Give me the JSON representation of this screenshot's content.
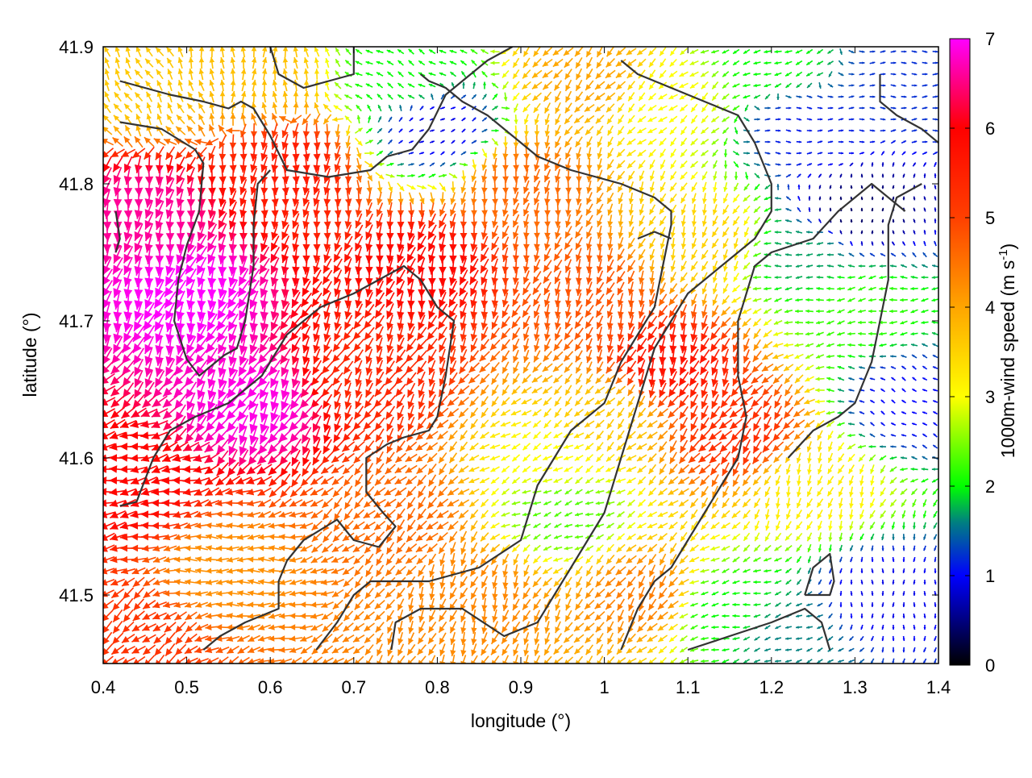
{
  "chart_data": {
    "type": "vector-field",
    "xlabel": "longitude (°)",
    "ylabel": "latitude (°)",
    "xlim": [
      0.4,
      1.4
    ],
    "ylim": [
      41.45,
      41.9
    ],
    "xticks": [
      0.4,
      0.5,
      0.6,
      0.7,
      0.8,
      0.9,
      1.0,
      1.1,
      1.2,
      1.3,
      1.4
    ],
    "xtick_labels": [
      "0.4",
      "0.5",
      "0.6",
      "0.7",
      "0.8",
      "0.9",
      "1",
      "1.1",
      "1.2",
      "1.3",
      "1.4"
    ],
    "yticks": [
      41.5,
      41.6,
      41.7,
      41.8,
      41.9
    ],
    "ytick_labels": [
      "41.5",
      "41.6",
      "41.7",
      "41.8",
      "41.9"
    ],
    "colorbar": {
      "label_prefix": "1000m-wind speed (m s",
      "label_exponent": "-1",
      "label_suffix": ")",
      "range": [
        0,
        7
      ],
      "ticks": [
        0,
        1,
        2,
        3,
        4,
        5,
        6,
        7
      ],
      "tick_labels": [
        "0",
        "1",
        "2",
        "3",
        "4",
        "5",
        "6",
        "7"
      ],
      "colormap": [
        {
          "v": 0,
          "color": "#000000"
        },
        {
          "v": 1,
          "color": "#0000ff"
        },
        {
          "v": 1.6,
          "color": "#008080"
        },
        {
          "v": 2,
          "color": "#00ff00"
        },
        {
          "v": 3,
          "color": "#ffff00"
        },
        {
          "v": 4,
          "color": "#ffa500"
        },
        {
          "v": 5,
          "color": "#ff4000"
        },
        {
          "v": 6,
          "color": "#ff0000"
        },
        {
          "v": 7,
          "color": "#ff00ff"
        }
      ]
    },
    "wind_regions": [
      {
        "lon": 0.5,
        "lat": 41.72,
        "speed": 7.0,
        "dir_deg": 200
      },
      {
        "lon": 0.58,
        "lat": 41.64,
        "speed": 6.9,
        "dir_deg": 210
      },
      {
        "lon": 0.45,
        "lat": 41.78,
        "speed": 6.6,
        "dir_deg": 190
      },
      {
        "lon": 0.43,
        "lat": 41.58,
        "speed": 5.9,
        "dir_deg": 260
      },
      {
        "lon": 0.62,
        "lat": 41.81,
        "speed": 5.6,
        "dir_deg": 185
      },
      {
        "lon": 0.78,
        "lat": 41.74,
        "speed": 5.9,
        "dir_deg": 195
      },
      {
        "lon": 0.72,
        "lat": 41.66,
        "speed": 5.4,
        "dir_deg": 210
      },
      {
        "lon": 0.9,
        "lat": 41.8,
        "speed": 4.6,
        "dir_deg": 190
      },
      {
        "lon": 0.98,
        "lat": 41.72,
        "speed": 4.8,
        "dir_deg": 200
      },
      {
        "lon": 0.55,
        "lat": 41.52,
        "speed": 4.2,
        "dir_deg": 270
      },
      {
        "lon": 0.75,
        "lat": 41.56,
        "speed": 4.6,
        "dir_deg": 225
      },
      {
        "lon": 0.85,
        "lat": 41.5,
        "speed": 4.3,
        "dir_deg": 200
      },
      {
        "lon": 0.94,
        "lat": 41.6,
        "speed": 3.0,
        "dir_deg": 240
      },
      {
        "lon": 0.95,
        "lat": 41.56,
        "speed": 2.3,
        "dir_deg": 250
      },
      {
        "lon": 1.0,
        "lat": 41.63,
        "speed": 3.6,
        "dir_deg": 225
      },
      {
        "lon": 1.08,
        "lat": 41.67,
        "speed": 5.7,
        "dir_deg": 200
      },
      {
        "lon": 1.16,
        "lat": 41.62,
        "speed": 5.3,
        "dir_deg": 220
      },
      {
        "lon": 1.05,
        "lat": 41.5,
        "speed": 4.4,
        "dir_deg": 215
      },
      {
        "lon": 1.14,
        "lat": 41.49,
        "speed": 2.0,
        "dir_deg": 260
      },
      {
        "lon": 1.22,
        "lat": 41.47,
        "speed": 1.6,
        "dir_deg": 250
      },
      {
        "lon": 1.33,
        "lat": 41.5,
        "speed": 0.9,
        "dir_deg": 180
      },
      {
        "lon": 1.25,
        "lat": 41.58,
        "speed": 3.2,
        "dir_deg": 200
      },
      {
        "lon": 1.36,
        "lat": 41.64,
        "speed": 1.0,
        "dir_deg": 300
      },
      {
        "lon": 1.3,
        "lat": 41.71,
        "speed": 2.2,
        "dir_deg": 260
      },
      {
        "lon": 1.24,
        "lat": 41.75,
        "speed": 1.7,
        "dir_deg": 270
      },
      {
        "lon": 1.3,
        "lat": 41.78,
        "speed": 0.4,
        "dir_deg": 0
      },
      {
        "lon": 1.24,
        "lat": 41.84,
        "speed": 1.1,
        "dir_deg": 90
      },
      {
        "lon": 1.2,
        "lat": 41.89,
        "speed": 2.0,
        "dir_deg": 250
      },
      {
        "lon": 1.36,
        "lat": 41.88,
        "speed": 1.2,
        "dir_deg": 90
      },
      {
        "lon": 1.08,
        "lat": 41.86,
        "speed": 3.0,
        "dir_deg": 230
      },
      {
        "lon": 0.98,
        "lat": 41.88,
        "speed": 4.0,
        "dir_deg": 220
      },
      {
        "lon": 0.76,
        "lat": 41.88,
        "speed": 2.0,
        "dir_deg": 300
      },
      {
        "lon": 0.8,
        "lat": 41.84,
        "speed": 0.9,
        "dir_deg": 60
      },
      {
        "lon": 0.58,
        "lat": 41.88,
        "speed": 3.7,
        "dir_deg": 0
      },
      {
        "lon": 0.45,
        "lat": 41.87,
        "speed": 3.6,
        "dir_deg": 330
      },
      {
        "lon": 1.12,
        "lat": 41.76,
        "speed": 3.5,
        "dir_deg": 200
      },
      {
        "lon": 0.42,
        "lat": 41.47,
        "speed": 5.2,
        "dir_deg": 230
      }
    ],
    "contours": [
      [
        [
          0.42,
          41.875
        ],
        [
          0.48,
          41.865
        ],
        [
          0.52,
          41.86
        ],
        [
          0.55,
          41.855
        ],
        [
          0.565,
          41.86
        ],
        [
          0.58,
          41.855
        ],
        [
          0.6,
          41.835
        ],
        [
          0.62,
          41.81
        ],
        [
          0.67,
          41.805
        ],
        [
          0.72,
          41.81
        ],
        [
          0.74,
          41.82
        ],
        [
          0.77,
          41.825
        ],
        [
          0.79,
          41.84
        ],
        [
          0.81,
          41.865
        ],
        [
          0.83,
          41.875
        ],
        [
          0.86,
          41.89
        ],
        [
          0.89,
          41.9
        ]
      ],
      [
        [
          0.42,
          41.845
        ],
        [
          0.47,
          41.84
        ],
        [
          0.51,
          41.825
        ],
        [
          0.52,
          41.815
        ],
        [
          0.515,
          41.78
        ],
        [
          0.5,
          41.755
        ],
        [
          0.49,
          41.73
        ],
        [
          0.485,
          41.7
        ],
        [
          0.5,
          41.672
        ],
        [
          0.515,
          41.66
        ],
        [
          0.545,
          41.675
        ],
        [
          0.56,
          41.68
        ],
        [
          0.57,
          41.7
        ],
        [
          0.58,
          41.74
        ],
        [
          0.58,
          41.77
        ],
        [
          0.585,
          41.8
        ],
        [
          0.6,
          41.81
        ]
      ],
      [
        [
          0.415,
          41.78
        ],
        [
          0.42,
          41.76
        ],
        [
          0.415,
          41.75
        ]
      ],
      [
        [
          0.42,
          41.565
        ],
        [
          0.44,
          41.568
        ],
        [
          0.46,
          41.6
        ],
        [
          0.48,
          41.62
        ],
        [
          0.51,
          41.63
        ],
        [
          0.55,
          41.64
        ],
        [
          0.59,
          41.66
        ],
        [
          0.62,
          41.69
        ],
        [
          0.66,
          41.71
        ],
        [
          0.7,
          41.72
        ],
        [
          0.73,
          41.73
        ],
        [
          0.76,
          41.74
        ],
        [
          0.78,
          41.73
        ],
        [
          0.8,
          41.71
        ],
        [
          0.82,
          41.7
        ],
        [
          0.81,
          41.66
        ],
        [
          0.8,
          41.63
        ],
        [
          0.79,
          41.62
        ],
        [
          0.76,
          41.615
        ],
        [
          0.74,
          41.61
        ],
        [
          0.715,
          41.6
        ],
        [
          0.715,
          41.575
        ],
        [
          0.735,
          41.56
        ],
        [
          0.75,
          41.55
        ],
        [
          0.73,
          41.535
        ],
        [
          0.7,
          41.54
        ],
        [
          0.68,
          41.555
        ],
        [
          0.64,
          41.54
        ],
        [
          0.62,
          41.525
        ],
        [
          0.61,
          41.51
        ],
        [
          0.61,
          41.49
        ],
        [
          0.57,
          41.48
        ],
        [
          0.54,
          41.47
        ],
        [
          0.52,
          41.46
        ]
      ],
      [
        [
          0.6,
          41.9
        ],
        [
          0.61,
          41.88
        ],
        [
          0.625,
          41.875
        ],
        [
          0.64,
          41.87
        ],
        [
          0.67,
          41.875
        ],
        [
          0.7,
          41.88
        ],
        [
          0.7,
          41.9
        ]
      ],
      [
        [
          0.655,
          41.46
        ],
        [
          0.68,
          41.48
        ],
        [
          0.7,
          41.5
        ],
        [
          0.72,
          41.51
        ],
        [
          0.79,
          41.51
        ],
        [
          0.85,
          41.52
        ],
        [
          0.9,
          41.54
        ],
        [
          0.92,
          41.58
        ],
        [
          0.96,
          41.62
        ],
        [
          1.0,
          41.64
        ],
        [
          1.02,
          41.67
        ],
        [
          1.04,
          41.69
        ],
        [
          1.06,
          41.71
        ],
        [
          1.07,
          41.74
        ],
        [
          1.08,
          41.77
        ],
        [
          1.08,
          41.78
        ],
        [
          1.06,
          41.79
        ],
        [
          1.02,
          41.8
        ],
        [
          0.96,
          41.81
        ],
        [
          0.92,
          41.82
        ],
        [
          0.9,
          41.83
        ],
        [
          0.88,
          41.84
        ],
        [
          0.86,
          41.85
        ],
        [
          0.83,
          41.86
        ],
        [
          0.81,
          41.87
        ],
        [
          0.79,
          41.875
        ],
        [
          0.78,
          41.88
        ]
      ],
      [
        [
          0.745,
          41.46
        ],
        [
          0.75,
          41.48
        ],
        [
          0.78,
          41.49
        ],
        [
          0.83,
          41.49
        ],
        [
          0.88,
          41.47
        ],
        [
          0.92,
          41.48
        ],
        [
          0.96,
          41.52
        ],
        [
          1.0,
          41.56
        ],
        [
          1.02,
          41.6
        ],
        [
          1.04,
          41.64
        ],
        [
          1.06,
          41.68
        ],
        [
          1.08,
          41.7
        ],
        [
          1.1,
          41.72
        ],
        [
          1.14,
          41.74
        ],
        [
          1.18,
          41.76
        ],
        [
          1.2,
          41.78
        ],
        [
          1.2,
          41.8
        ],
        [
          1.18,
          41.83
        ],
        [
          1.16,
          41.85
        ],
        [
          1.12,
          41.86
        ],
        [
          1.08,
          41.87
        ],
        [
          1.04,
          41.88
        ],
        [
          1.02,
          41.89
        ]
      ],
      [
        [
          1.04,
          41.76
        ],
        [
          1.06,
          41.765
        ],
        [
          1.08,
          41.76
        ]
      ],
      [
        [
          1.02,
          41.46
        ],
        [
          1.04,
          41.49
        ],
        [
          1.06,
          41.51
        ],
        [
          1.08,
          41.52
        ],
        [
          1.1,
          41.54
        ],
        [
          1.12,
          41.56
        ],
        [
          1.14,
          41.58
        ],
        [
          1.16,
          41.6
        ],
        [
          1.17,
          41.63
        ],
        [
          1.16,
          41.66
        ],
        [
          1.16,
          41.7
        ],
        [
          1.18,
          41.74
        ],
        [
          1.2,
          41.75
        ],
        [
          1.25,
          41.76
        ],
        [
          1.28,
          41.78
        ],
        [
          1.3,
          41.79
        ],
        [
          1.32,
          41.8
        ],
        [
          1.36,
          41.78
        ]
      ],
      [
        [
          1.1,
          41.46
        ],
        [
          1.15,
          41.47
        ],
        [
          1.2,
          41.48
        ],
        [
          1.24,
          41.49
        ],
        [
          1.26,
          41.48
        ],
        [
          1.27,
          41.46
        ]
      ],
      [
        [
          1.24,
          41.5
        ],
        [
          1.25,
          41.52
        ],
        [
          1.27,
          41.53
        ],
        [
          1.275,
          41.51
        ],
        [
          1.27,
          41.5
        ],
        [
          1.24,
          41.5
        ]
      ],
      [
        [
          1.22,
          41.6
        ],
        [
          1.25,
          41.62
        ],
        [
          1.28,
          41.63
        ],
        [
          1.3,
          41.64
        ],
        [
          1.32,
          41.67
        ],
        [
          1.33,
          41.7
        ],
        [
          1.34,
          41.73
        ],
        [
          1.34,
          41.75
        ],
        [
          1.34,
          41.77
        ],
        [
          1.35,
          41.79
        ],
        [
          1.38,
          41.8
        ]
      ],
      [
        [
          1.33,
          41.88
        ],
        [
          1.33,
          41.86
        ],
        [
          1.35,
          41.85
        ],
        [
          1.38,
          41.84
        ],
        [
          1.4,
          41.83
        ]
      ]
    ]
  }
}
